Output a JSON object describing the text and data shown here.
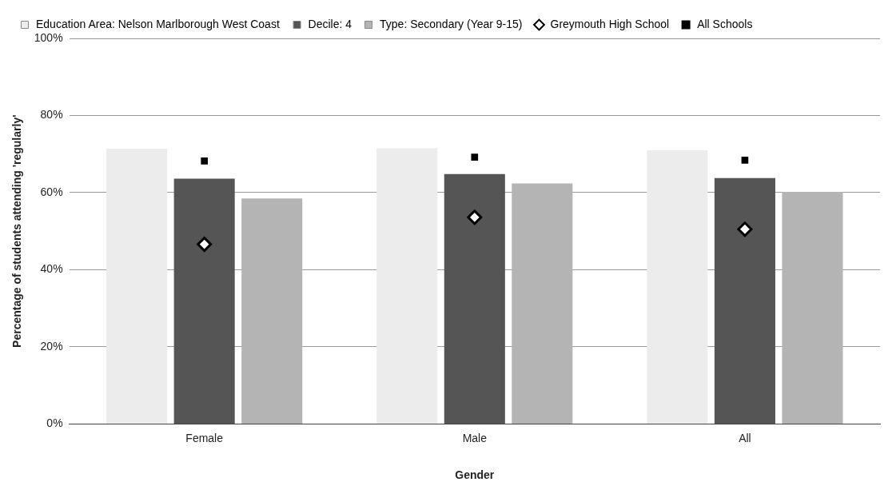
{
  "chart_data": {
    "type": "bar",
    "xlabel": "Gender",
    "ylabel": "Percentage of students attending 'regularly'",
    "categories": [
      "Female",
      "Male",
      "All"
    ],
    "series": [
      {
        "name": "Education Area: Nelson Marlborough West Coast",
        "color": "#ececec",
        "values": [
          71.4,
          71.5,
          71
        ]
      },
      {
        "name": "Decile: 4",
        "color": "#555555",
        "values": [
          63.6,
          64.8,
          63.8
        ]
      },
      {
        "name": "Type: Secondary (Year 9-15)",
        "color": "#b4b4b4",
        "values": [
          58.5,
          62.4,
          60.2
        ]
      },
      {
        "name": "Greymouth High School",
        "type": "scatter",
        "marker": "diamond",
        "color": "#000000",
        "x": [
          "Female",
          "Male",
          "All"
        ],
        "values": [
          46.6,
          53.6,
          50.5
        ]
      },
      {
        "name": "All Schools",
        "type": "scatter",
        "marker": "square",
        "color": "#000000",
        "x": [
          "Female",
          "Male",
          "All"
        ],
        "values": [
          68.2,
          69.2,
          68.4
        ]
      }
    ],
    "ylim": [
      0,
      100
    ],
    "yticks": [
      {
        "value": 0,
        "label": "0%"
      },
      {
        "value": 20,
        "label": "20%"
      },
      {
        "value": 40,
        "label": "40%"
      },
      {
        "value": 60,
        "label": "60%"
      },
      {
        "value": 80,
        "label": "80%"
      },
      {
        "value": 100,
        "label": "100%"
      }
    ],
    "grid": "y",
    "legend": "top left"
  }
}
